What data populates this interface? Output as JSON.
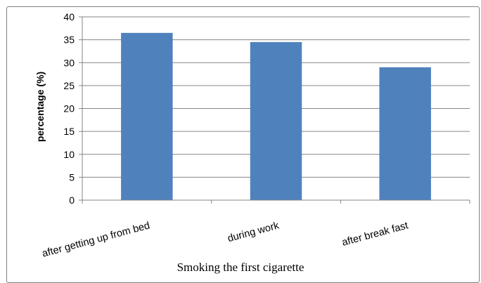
{
  "chart_data": {
    "type": "bar",
    "categories": [
      "after getting up from bed",
      "during work",
      "after break fast"
    ],
    "values": [
      36.5,
      34.5,
      29
    ],
    "ylabel": "percentage (%)",
    "xlabel": "Smoking the first cigarette",
    "ylim": [
      0,
      40
    ],
    "yticks": [
      0,
      5,
      10,
      15,
      20,
      25,
      30,
      35,
      40
    ],
    "grid": true,
    "bar_color": "#4f81bd",
    "gridline_color": "#868686"
  }
}
